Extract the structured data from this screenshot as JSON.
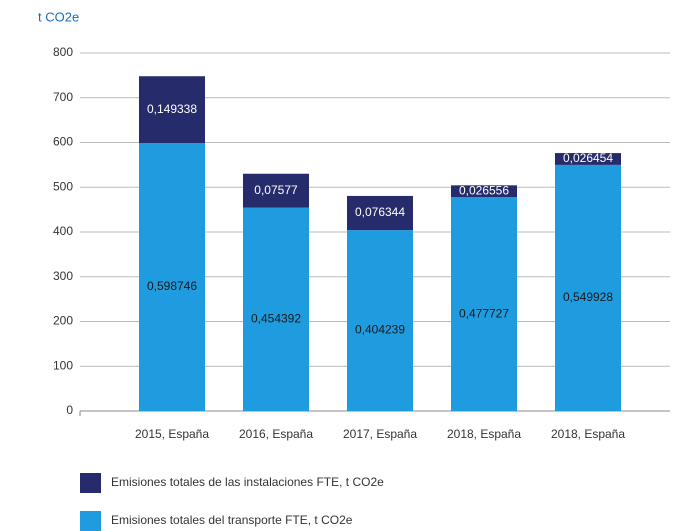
{
  "chart_data": {
    "type": "stacked_bar",
    "y_label": "t CO2e",
    "categories": [
      "2015, España",
      "2016, España",
      "2017, España",
      "2018, España",
      "2018, España"
    ],
    "series": [
      {
        "name": "Emisiones totales de las instalaciones FTE, t CO2e",
        "color": "#262c6b",
        "values": [
          149.338,
          75.77,
          76.344,
          26.556,
          26.454
        ],
        "value_labels": [
          "0,149338",
          "0,07577",
          "0,076344",
          "0,026556",
          "0,026454"
        ]
      },
      {
        "name": "Emisiones totales del transporte FTE, t CO2e",
        "color": "#1f9ce0",
        "values": [
          598.746,
          454.392,
          404.239,
          477.727,
          549.928
        ],
        "value_labels": [
          "0,598746",
          "0,454392",
          "0,404239",
          "0,477727",
          "0,549928"
        ]
      }
    ],
    "ylim": [
      0,
      800
    ],
    "yticks": [
      0,
      100,
      200,
      300,
      400,
      500,
      600,
      700,
      800
    ],
    "grid": true
  }
}
